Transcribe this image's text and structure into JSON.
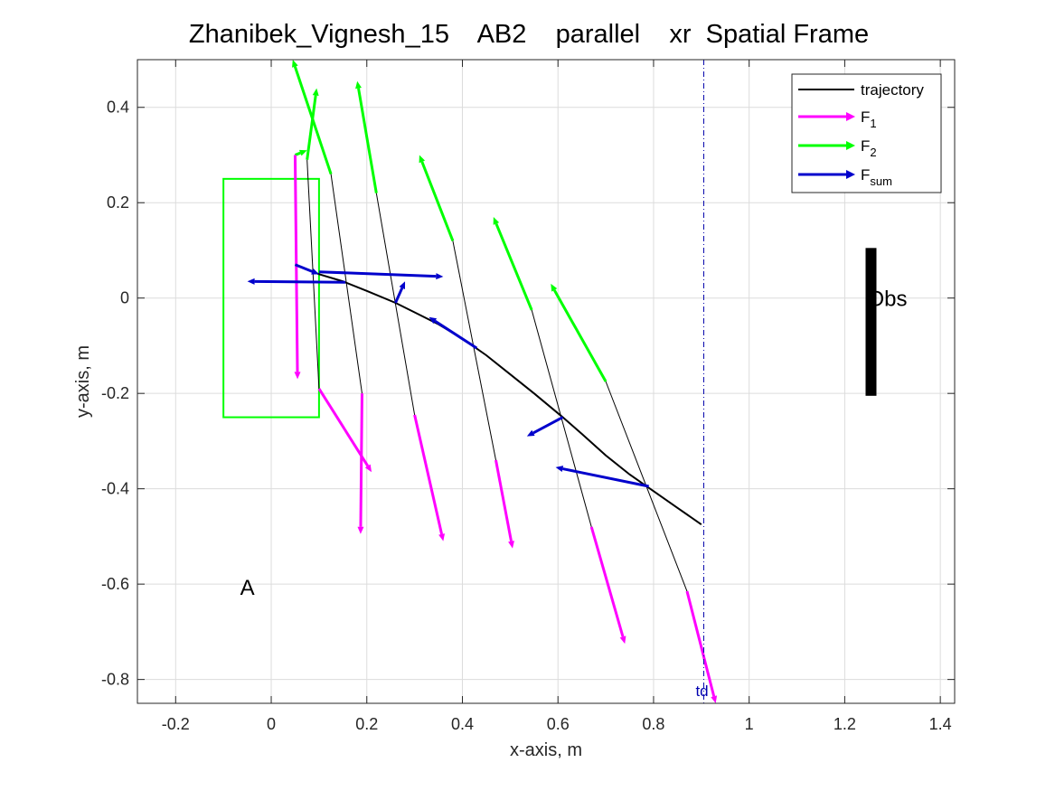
{
  "chart_data": {
    "type": "line",
    "title": "Zhanibek_Vignesh_15    AB2    parallel    xr  Spatial Frame",
    "xlabel": "x-axis, m",
    "ylabel": "y-axis, m",
    "xlim": [
      -0.28,
      1.43
    ],
    "ylim": [
      -0.85,
      0.5
    ],
    "xticks": [
      -0.2,
      0,
      0.2,
      0.4,
      0.6,
      0.8,
      1,
      1.2,
      1.4
    ],
    "xtick_labels": [
      "-0.2",
      "0",
      "0.2",
      "0.4",
      "0.6",
      "0.8",
      "1",
      "1.2",
      "1.4"
    ],
    "yticks": [
      -0.8,
      -0.6,
      -0.4,
      -0.2,
      0,
      0.2,
      0.4
    ],
    "ytick_labels": [
      "-0.8",
      "-0.6",
      "-0.4",
      "-0.2",
      "0",
      "0.2",
      "0.4"
    ],
    "grid": true,
    "legend_position": "top-right",
    "legend": [
      {
        "label": "trajectory",
        "sub": "",
        "color": "#000000",
        "arrow": false
      },
      {
        "label": "F",
        "sub": "1",
        "color": "#ff00ff",
        "arrow": true
      },
      {
        "label": "F",
        "sub": "2",
        "color": "#00ff00",
        "arrow": true
      },
      {
        "label": "F",
        "sub": "sum",
        "color": "#0000cc",
        "arrow": true
      }
    ],
    "colors": {
      "trajectory": "#000000",
      "F1": "#ff00ff",
      "F2": "#00ff00",
      "Fsum": "#0000cc",
      "start_box": "#00ff00",
      "obstacle": "#000000",
      "td_line": "#0000aa",
      "connector": "#000000"
    },
    "trajectory": {
      "x": [
        0.05,
        0.1,
        0.15,
        0.2,
        0.26,
        0.3,
        0.35,
        0.4,
        0.45,
        0.5,
        0.55,
        0.61,
        0.65,
        0.7,
        0.75,
        0.8,
        0.85,
        0.9
      ],
      "y": [
        0.07,
        0.05,
        0.035,
        0.015,
        -0.01,
        -0.03,
        -0.055,
        -0.085,
        -0.12,
        -0.16,
        -0.2,
        -0.25,
        -0.285,
        -0.33,
        -0.37,
        -0.405,
        -0.44,
        -0.475
      ]
    },
    "force_sets": [
      {
        "px": 0.05,
        "py": 0.07,
        "f1": [
          0.05,
          0.3,
          0.055,
          -0.17
        ],
        "f2": [
          0.05,
          0.3,
          0.075,
          0.31
        ],
        "fsum": [
          0.05,
          0.07,
          0.1,
          0.05
        ]
      },
      {
        "px": 0.1,
        "py": 0.05,
        "f1": [
          0.1,
          -0.19,
          0.21,
          -0.365
        ],
        "f2": [
          0.075,
          0.29,
          0.095,
          0.44
        ],
        "fsum": [
          0.1,
          0.055,
          0.36,
          0.045
        ]
      },
      {
        "px": 0.155,
        "py": 0.033,
        "f1": [
          0.19,
          -0.2,
          0.187,
          -0.495
        ],
        "f2": [
          0.125,
          0.26,
          0.045,
          0.5
        ],
        "fsum": [
          0.155,
          0.033,
          -0.05,
          0.035
        ]
      },
      {
        "px": 0.26,
        "py": -0.01,
        "f1": [
          0.3,
          -0.245,
          0.36,
          -0.51
        ],
        "f2": [
          0.22,
          0.22,
          0.18,
          0.455
        ],
        "fsum": [
          0.26,
          -0.01,
          0.28,
          0.035
        ]
      },
      {
        "px": 0.43,
        "py": -0.105,
        "f1": [
          0.47,
          -0.34,
          0.505,
          -0.525
        ],
        "f2": [
          0.38,
          0.12,
          0.31,
          0.3
        ],
        "fsum": [
          0.43,
          -0.105,
          0.33,
          -0.04
        ]
      },
      {
        "px": 0.61,
        "py": -0.25,
        "f1": [
          0.67,
          -0.48,
          0.74,
          -0.725
        ],
        "f2": [
          0.545,
          -0.025,
          0.465,
          0.17
        ],
        "fsum": [
          0.61,
          -0.25,
          0.535,
          -0.29
        ]
      },
      {
        "px": 0.79,
        "py": -0.395,
        "f1": [
          0.87,
          -0.615,
          0.93,
          -0.85
        ],
        "f2": [
          0.7,
          -0.175,
          0.585,
          0.03
        ],
        "fsum": [
          0.79,
          -0.395,
          0.595,
          -0.355
        ]
      }
    ],
    "start_box": {
      "x0": -0.1,
      "x1": 0.1,
      "y0": -0.25,
      "y1": 0.25
    },
    "obstacle": {
      "x": 1.255,
      "y0": -0.205,
      "y1": 0.105,
      "label": "Obs"
    },
    "td_line": {
      "x": 0.905,
      "label": "td"
    },
    "start_label": {
      "text": "A",
      "x": -0.05,
      "y": -0.6
    }
  }
}
